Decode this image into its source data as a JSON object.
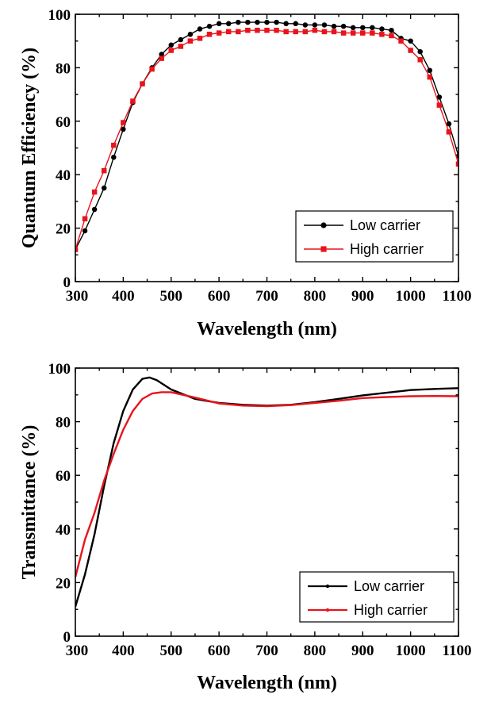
{
  "chart_data": [
    {
      "type": "line",
      "title": "",
      "xlabel": "Wavelength (nm)",
      "ylabel": "Quantum Efficiency (%)",
      "xlim": [
        300,
        1100
      ],
      "ylim": [
        0,
        100
      ],
      "xticks": [
        300,
        400,
        500,
        600,
        700,
        800,
        900,
        1000,
        1100
      ],
      "yticks": [
        0,
        20,
        40,
        60,
        80,
        100
      ],
      "legend": "bottom-right",
      "series": [
        {
          "name": "Low carrier",
          "color": "#000000",
          "marker": "circle",
          "x": [
            300,
            320,
            340,
            360,
            380,
            400,
            420,
            440,
            460,
            480,
            500,
            520,
            540,
            560,
            580,
            600,
            620,
            640,
            660,
            680,
            700,
            720,
            740,
            760,
            780,
            800,
            820,
            840,
            860,
            880,
            900,
            920,
            940,
            960,
            980,
            1000,
            1020,
            1040,
            1060,
            1080,
            1100
          ],
          "y": [
            12,
            19,
            27,
            35,
            46.5,
            57,
            67,
            74,
            80,
            85,
            88.5,
            90.5,
            92.5,
            94.5,
            95.5,
            96.5,
            96.5,
            97,
            97,
            97,
            97,
            97,
            96.5,
            96.5,
            96,
            96,
            96,
            95.5,
            95.5,
            95,
            95,
            95,
            94.5,
            94,
            91,
            90,
            86,
            79,
            69,
            59,
            47
          ]
        },
        {
          "name": "High carrier",
          "color": "#e8141c",
          "marker": "square",
          "x": [
            300,
            320,
            340,
            360,
            380,
            400,
            420,
            440,
            460,
            480,
            500,
            520,
            540,
            560,
            580,
            600,
            620,
            640,
            660,
            680,
            700,
            720,
            740,
            760,
            780,
            800,
            820,
            840,
            860,
            880,
            900,
            920,
            940,
            960,
            980,
            1000,
            1020,
            1040,
            1060,
            1080,
            1100
          ],
          "y": [
            12,
            23.5,
            33.5,
            41.5,
            51,
            59.5,
            67.5,
            74,
            79.5,
            83.5,
            86.5,
            88,
            90,
            91,
            92.5,
            93,
            93.5,
            93.5,
            94,
            94,
            94,
            94,
            93.5,
            93.5,
            93.5,
            94,
            93.5,
            93.5,
            93,
            93,
            93,
            93,
            92.5,
            92,
            90,
            86.5,
            83,
            76.5,
            66,
            56,
            44
          ]
        }
      ]
    },
    {
      "type": "line",
      "title": "",
      "xlabel": "Wavelength (nm)",
      "ylabel": "Transmittance (%)",
      "xlim": [
        300,
        1100
      ],
      "ylim": [
        0,
        100
      ],
      "xticks": [
        300,
        400,
        500,
        600,
        700,
        800,
        900,
        1000,
        1100
      ],
      "yticks": [
        0,
        20,
        40,
        60,
        80,
        100
      ],
      "legend": "bottom-right",
      "series": [
        {
          "name": "Low carrier",
          "color": "#000000",
          "marker": "small-dot",
          "x": [
            300,
            320,
            340,
            360,
            380,
            400,
            420,
            440,
            455,
            470,
            500,
            550,
            600,
            650,
            700,
            750,
            800,
            850,
            900,
            950,
            1000,
            1050,
            1100
          ],
          "y": [
            11,
            23,
            38,
            56,
            72,
            84,
            92,
            96,
            96.5,
            95.5,
            92,
            88.5,
            87,
            86.3,
            86,
            86.3,
            87.3,
            88.5,
            89.8,
            90.8,
            91.8,
            92.2,
            92.5
          ]
        },
        {
          "name": "High carrier",
          "color": "#e8141c",
          "marker": "small-dot",
          "x": [
            300,
            320,
            340,
            360,
            380,
            400,
            420,
            440,
            460,
            480,
            500,
            550,
            600,
            650,
            700,
            750,
            800,
            850,
            900,
            950,
            1000,
            1050,
            1100
          ],
          "y": [
            22,
            36,
            46,
            58,
            68,
            77,
            84,
            88.5,
            90.5,
            91,
            91,
            89,
            86.8,
            86,
            85.8,
            86.2,
            87,
            87.8,
            88.8,
            89.2,
            89.5,
            89.6,
            89.5
          ]
        }
      ]
    }
  ]
}
